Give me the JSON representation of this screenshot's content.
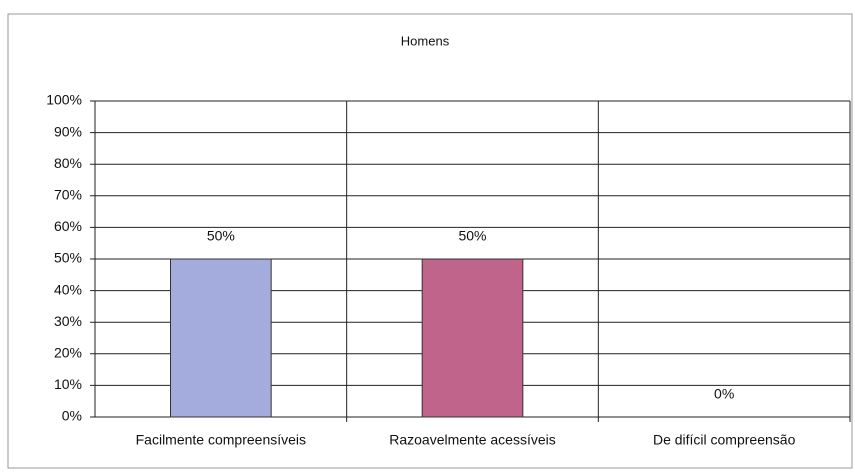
{
  "chart_data": {
    "type": "bar",
    "title": "Homens",
    "categories": [
      "Facilmente compreensíveis",
      "Razoavelmente acessíveis",
      "De difícil compreensão"
    ],
    "values": [
      50,
      50,
      0
    ],
    "value_labels": [
      "50%",
      "50%",
      "0%"
    ],
    "colors": [
      "#a4acde",
      "#c0648c",
      "#ffffcc"
    ],
    "ylim": [
      0,
      100
    ],
    "yticks": [
      {
        "value": 0,
        "label": "0%"
      },
      {
        "value": 10,
        "label": "10%"
      },
      {
        "value": 20,
        "label": "20%"
      },
      {
        "value": 30,
        "label": "30%"
      },
      {
        "value": 40,
        "label": "40%"
      },
      {
        "value": 50,
        "label": "50%"
      },
      {
        "value": 60,
        "label": "60%"
      },
      {
        "value": 70,
        "label": "70%"
      },
      {
        "value": 80,
        "label": "80%"
      },
      {
        "value": 90,
        "label": "90%"
      },
      {
        "value": 100,
        "label": "100%"
      }
    ],
    "grid": true
  }
}
